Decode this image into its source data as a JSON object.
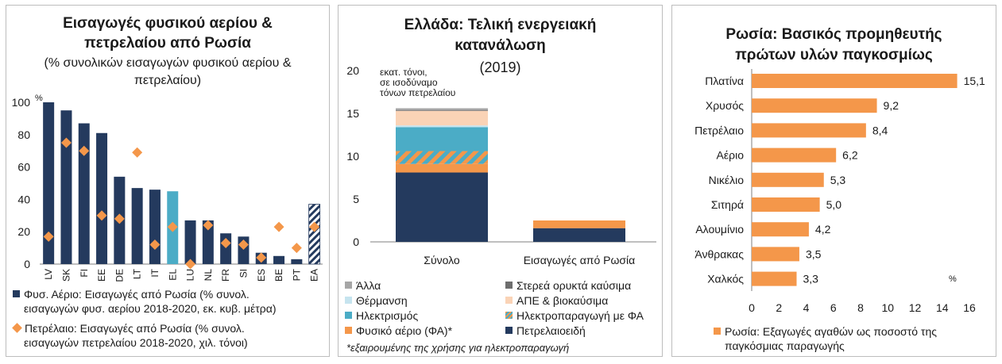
{
  "colors": {
    "navy": "#243a5e",
    "orange": "#f4974a",
    "lightblue": "#4bacc6",
    "grey_other": "#a6a6a6",
    "grey_solid": "#6d6d6d",
    "heating": "#c6e4ef",
    "renewables": "#fad3b6"
  },
  "chart_data": [
    {
      "type": "bar",
      "title_line1": "Εισαγωγές φυσικού αερίου &",
      "title_line2": "πετρελαίου από Ρωσία",
      "subtitle_line1": "(% συνολικών εισαγωγών φυσικού αερίου &",
      "subtitle_line2": "πετρελαίου)",
      "unit": "%",
      "ylim": [
        0,
        100
      ],
      "yticks": [
        "0",
        "20",
        "40",
        "60",
        "80",
        "100"
      ],
      "categories": [
        "LV",
        "SK",
        "FI",
        "EE",
        "DE",
        "LT",
        "IT",
        "EL",
        "LU",
        "NL",
        "FR",
        "SI",
        "ES",
        "BE",
        "PT",
        "EA"
      ],
      "series": [
        {
          "name": "Φυσ. Αέριο: Εισαγωγές από Ρωσία (% συνολ. εισαγωγών φυσ. αερίου 2018-2020, εκ. κυβ. μέτρα)",
          "legend_line1": "Φυσ. Αέριο: Εισαγωγές από Ρωσία (% συνολ.",
          "legend_line2": "εισαγωγών φυσ. αερίου 2018-2020, εκ. κυβ. μέτρα)",
          "values": [
            100,
            95,
            87,
            81,
            54,
            47,
            46,
            45,
            27,
            27,
            19,
            17,
            7,
            5,
            3,
            37
          ]
        },
        {
          "name": "Πετρέλαιο: Εισαγωγές από Ρωσία (% συνολ. εισαγωγών πετρελαίου 2018-2020, χιλ. τόνοι)",
          "legend_line1": "Πετρέλαιο: Εισαγωγές από Ρωσία (% συνολ.",
          "legend_line2": "εισαγωγών πετρελαίου 2018-2020, χιλ. τόνοι)",
          "values": [
            17,
            75,
            70,
            30,
            28,
            69,
            12,
            23,
            0,
            24,
            13,
            12,
            4,
            23,
            10,
            23
          ]
        }
      ]
    },
    {
      "type": "bar",
      "stacked": true,
      "title_line1": "Ελλάδα: Τελική ενεργειακή",
      "title_line2": "κατανάλωση",
      "title_line3": "(2019)",
      "unit_line1": "εκατ. τόνοι,",
      "unit_line2": "σε ισοδύναμο",
      "unit_line3": "τόνων πετρελαίου",
      "ylim": [
        0,
        20
      ],
      "yticks": [
        "0",
        "5",
        "10",
        "15",
        "20"
      ],
      "categories": [
        "Σύνολο",
        "Εισαγωγές από Ρωσία"
      ],
      "series": [
        {
          "name": "Πετρελαιοειδή",
          "values": [
            8.1,
            1.6
          ]
        },
        {
          "name": "Φυσικό αέριο (ΦΑ)*",
          "values": [
            1.0,
            0.9
          ]
        },
        {
          "name": "Ηλεκτροπαραγωγή με ΦΑ",
          "values": [
            1.5,
            0
          ]
        },
        {
          "name": "Ηλεκτρισμός",
          "values": [
            2.8,
            0
          ]
        },
        {
          "name": "Θέρμανση",
          "values": [
            0.2,
            0
          ]
        },
        {
          "name": "ΑΠΕ & βιοκαύσιμα",
          "values": [
            1.7,
            0
          ]
        },
        {
          "name": "Στερεά ορυκτά καύσιμα",
          "values": [
            0.1,
            0
          ]
        },
        {
          "name": "Άλλα",
          "values": [
            0.2,
            0
          ]
        }
      ],
      "legend_order": [
        "Άλλα",
        "Στερεά ορυκτά καύσιμα",
        "Θέρμανση",
        "ΑΠΕ & βιοκαύσιμα",
        "Ηλεκτρισμός",
        "Ηλεκτροπαραγωγή με ΦΑ",
        "Φυσικό αέριο (ΦΑ)*",
        "Πετρελαιοειδή"
      ],
      "footnote": "*εξαιρουμένης της χρήσης για ηλεκτροπαραγωγή"
    },
    {
      "type": "bar",
      "orientation": "horizontal",
      "title_line1": "Ρωσία: Βασικός προμηθευτής",
      "title_line2": "πρώτων υλών παγκοσμίως",
      "unit": "%",
      "xlim": [
        0,
        16
      ],
      "xticks": [
        "0",
        "2",
        "4",
        "6",
        "8",
        "10",
        "12",
        "14",
        "16"
      ],
      "categories": [
        "Πλατίνα",
        "Χρυσός",
        "Πετρέλαιο",
        "Αέριο",
        "Νικέλιο",
        "Σιτηρά",
        "Αλουμίνιο",
        "Άνθρακας",
        "Χαλκός"
      ],
      "values": [
        15.1,
        9.2,
        8.4,
        6.2,
        5.3,
        5.0,
        4.2,
        3.5,
        3.3
      ],
      "value_labels": [
        "15,1",
        "9,2",
        "8,4",
        "6,2",
        "5,3",
        "5,0",
        "4,2",
        "3,5",
        "3,3"
      ],
      "legend_line1": "Ρωσία: Εξαγωγές αγαθών ως ποσοστό της",
      "legend_line2": "παγκόσμιας παραγωγής"
    }
  ]
}
